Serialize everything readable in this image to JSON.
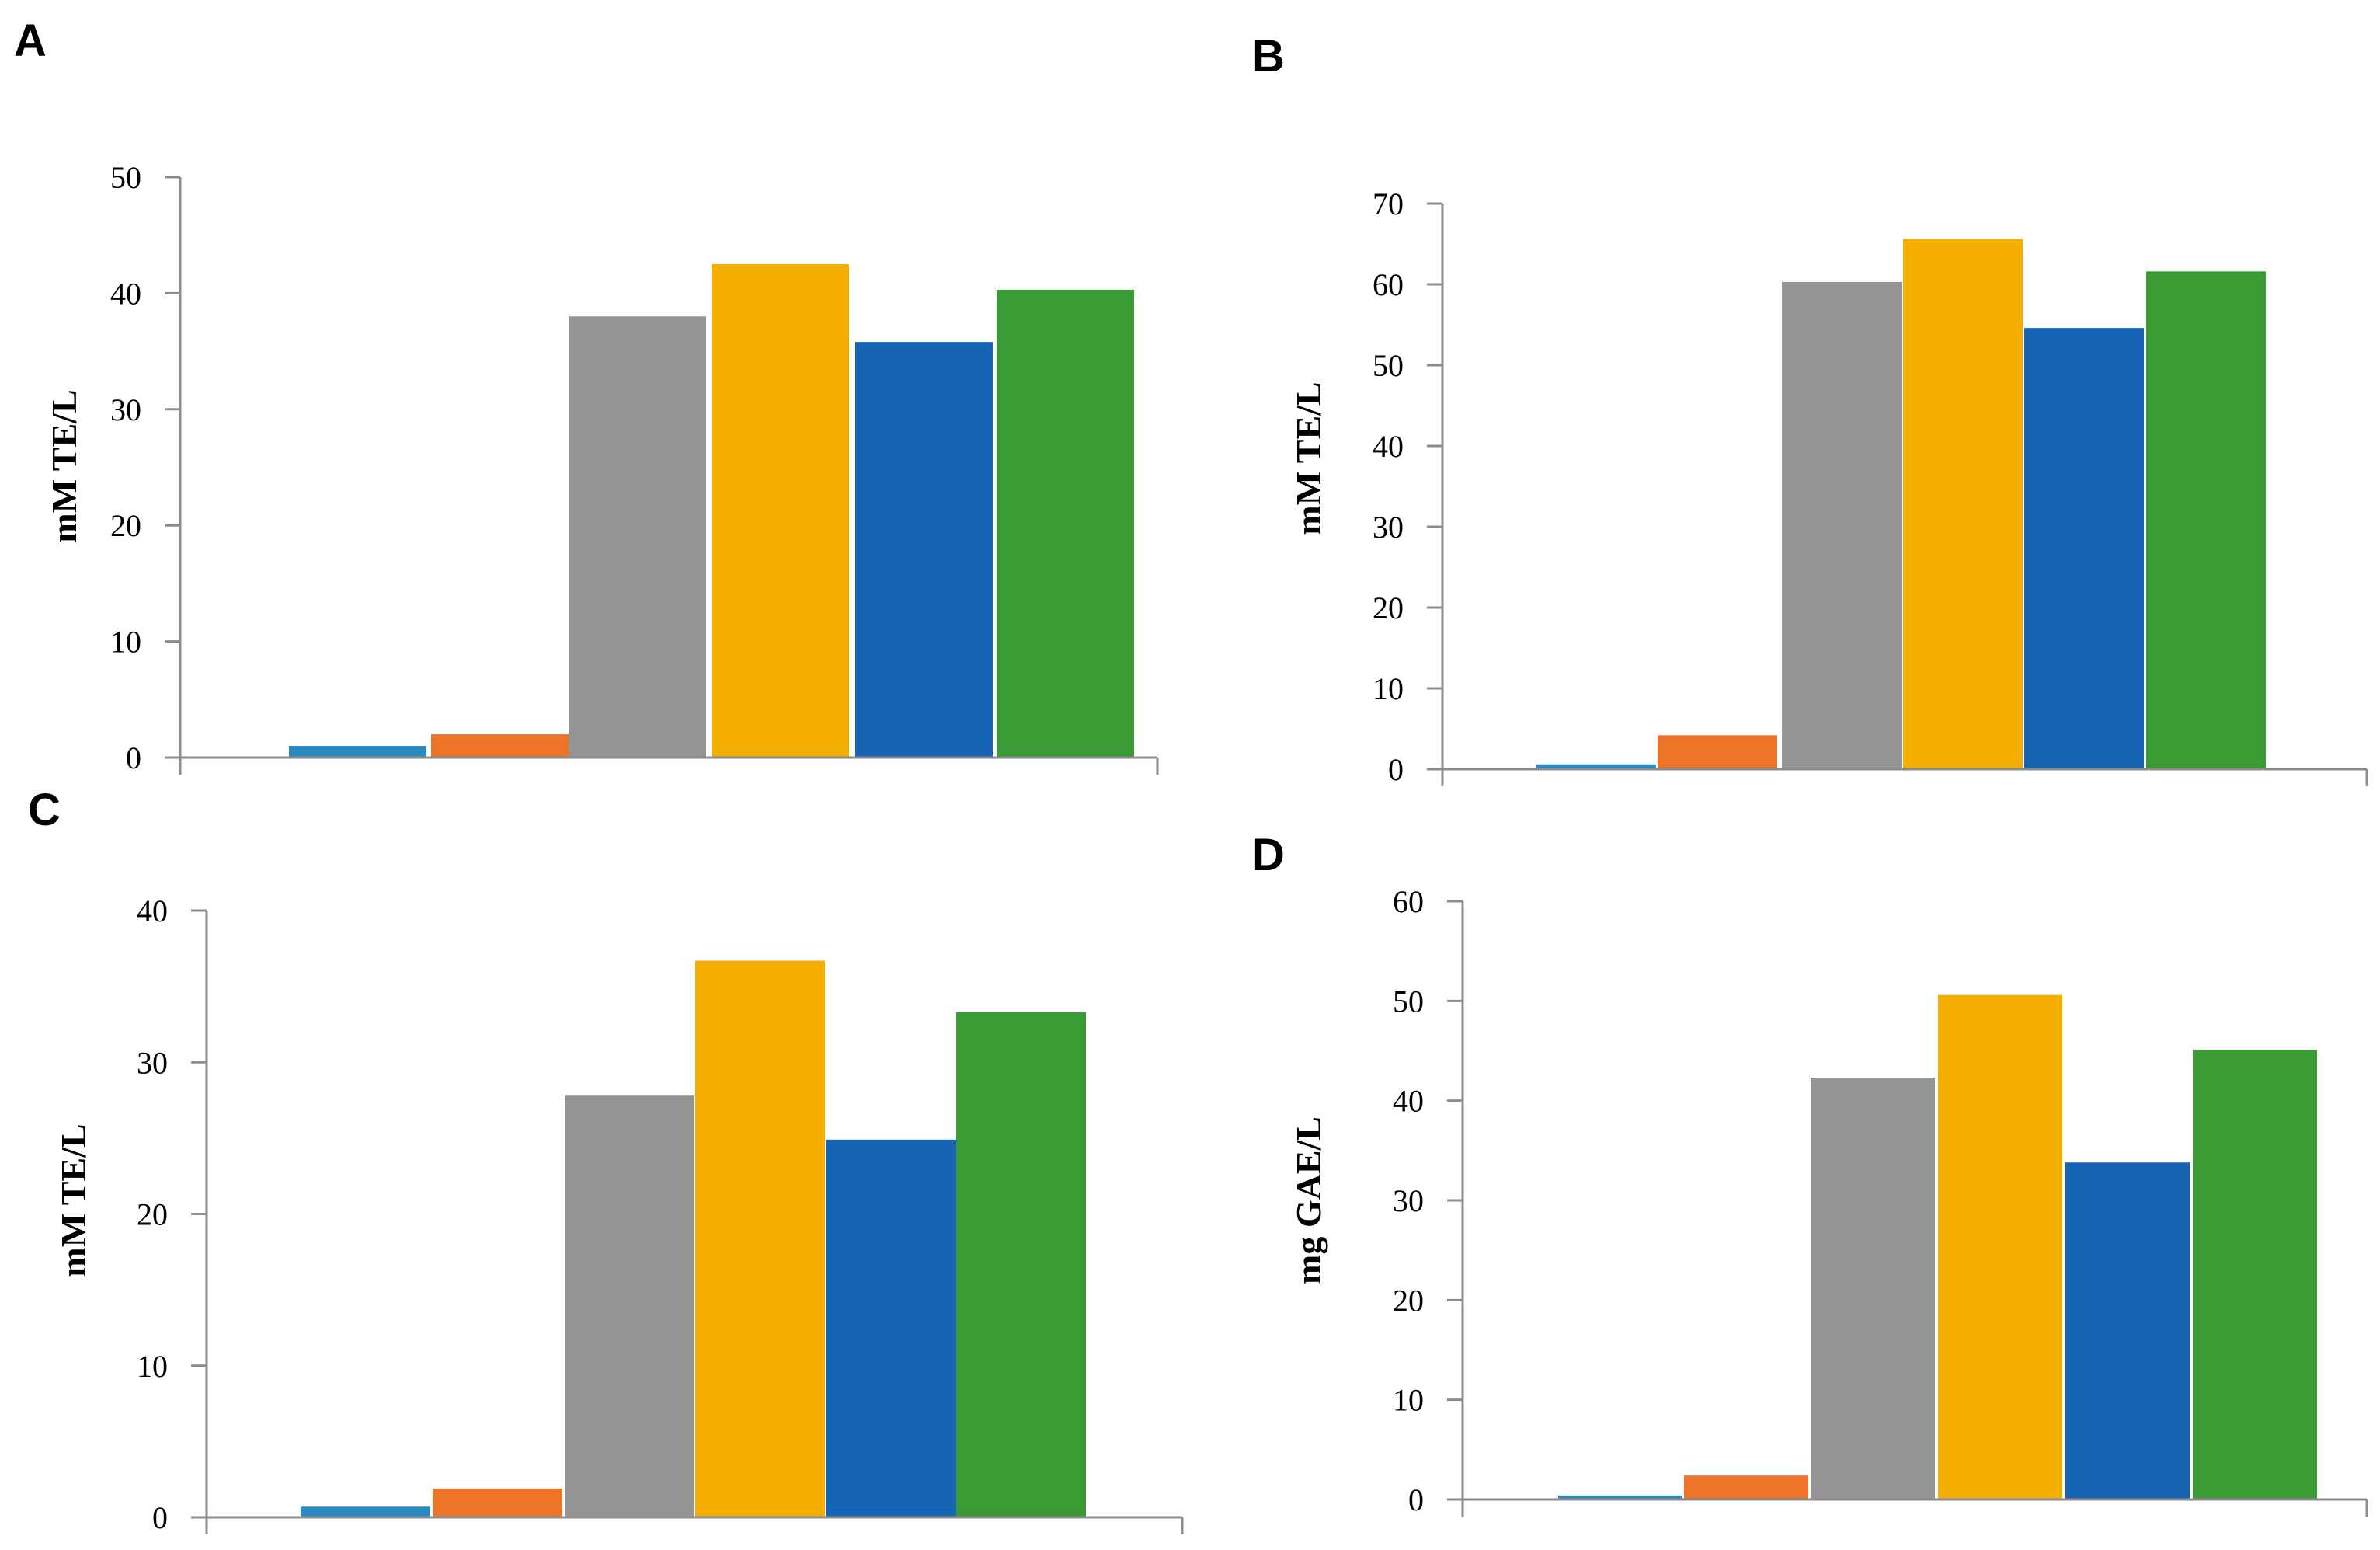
{
  "chart_data": [
    {
      "panel": "A",
      "type": "bar",
      "ylabel": "mM TE/L",
      "ylim": [
        0,
        50
      ],
      "yticks": [
        "0",
        "10",
        "20",
        "30",
        "40",
        "50"
      ],
      "values": [
        1.0,
        2.0,
        38.0,
        42.5,
        35.8,
        40.3
      ],
      "colors": [
        "#2a8ac4",
        "#ed7326",
        "#949494",
        "#f4ae00",
        "#1565b4",
        "#3a9b34"
      ]
    },
    {
      "panel": "B",
      "type": "bar",
      "ylabel": "mM TE/L",
      "ylim": [
        0,
        70
      ],
      "yticks": [
        "0",
        "10",
        "20",
        "30",
        "40",
        "50",
        "60",
        "70"
      ],
      "values": [
        0.6,
        4.2,
        60.3,
        65.6,
        54.6,
        61.6
      ],
      "colors": [
        "#2a8ac4",
        "#ed7326",
        "#949494",
        "#f4ae00",
        "#1565b4",
        "#3a9b34"
      ]
    },
    {
      "panel": "C",
      "type": "bar",
      "ylabel": "mM TE/L",
      "ylim": [
        0,
        40
      ],
      "yticks": [
        "0",
        "10",
        "20",
        "30",
        "40"
      ],
      "values": [
        0.7,
        1.9,
        27.8,
        36.7,
        24.9,
        33.3
      ],
      "colors": [
        "#2a8ac4",
        "#ed7326",
        "#949494",
        "#f4ae00",
        "#1565b4",
        "#3a9b34"
      ]
    },
    {
      "panel": "D",
      "type": "bar",
      "ylabel": "mg GAE/L",
      "ylim": [
        0,
        60
      ],
      "yticks": [
        "0",
        "10",
        "20",
        "30",
        "40",
        "50",
        "60"
      ],
      "values": [
        0.4,
        2.4,
        42.3,
        50.6,
        33.8,
        45.1
      ],
      "colors": [
        "#2a8ac4",
        "#ed7326",
        "#949494",
        "#f4ae00",
        "#1565b4",
        "#3a9b34"
      ]
    }
  ]
}
